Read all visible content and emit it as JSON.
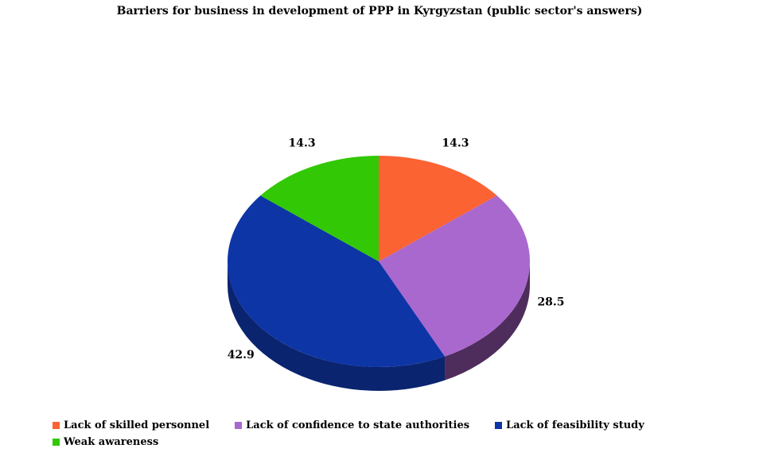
{
  "chart_data": {
    "type": "pie",
    "title": "Barriers for business in development of PPP in Kyrgyzstan (public sector's answers)",
    "is_3d": true,
    "start_angle_deg": 0,
    "direction": "clockwise",
    "legend_position": "bottom-left",
    "background_color": "#FFFFFF",
    "slices": [
      {
        "label": "Lack of skilled personnel",
        "value": 14.3,
        "value_label": "14.3",
        "color": "#FC6332",
        "side_color": "#9A3C1E"
      },
      {
        "label": "Lack of confidence to state authorities",
        "value": 28.5,
        "value_label": "28.5",
        "color": "#A968CE",
        "side_color": "#4E2C5C"
      },
      {
        "label": "Lack of feasibility study",
        "value": 42.9,
        "value_label": "42.9",
        "color": "#0D35A6",
        "side_color": "#0A2470"
      },
      {
        "label": "Weak awareness",
        "value": 14.3,
        "value_label": "14.3",
        "color": "#32C805",
        "side_color": "#1E7A03"
      }
    ]
  }
}
